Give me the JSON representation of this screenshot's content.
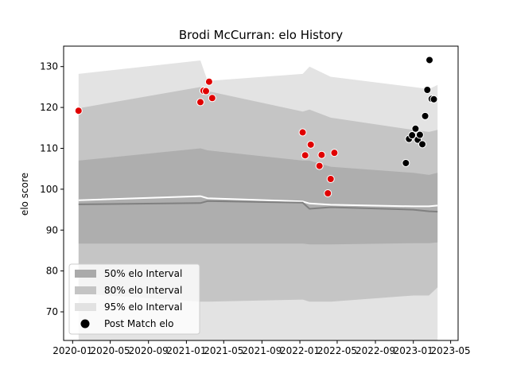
{
  "chart_data": {
    "type": "scatter",
    "title": "Brodi McCurran: elo History",
    "xlabel": "",
    "ylabel": "elo score",
    "xlim": [
      "2019-12-03",
      "2023-05-25"
    ],
    "ylim": [
      63,
      135
    ],
    "x_ticks": [
      "2020-01",
      "2020-05",
      "2020-09",
      "2021-01",
      "2021-05",
      "2021-09",
      "2022-01",
      "2022-05",
      "2022-09",
      "2023-01",
      "2023-05"
    ],
    "y_ticks": [
      70,
      80,
      90,
      100,
      110,
      120,
      130
    ],
    "grid": false,
    "legend_position": "lower-left",
    "legend": [
      {
        "label": "50% elo Interval",
        "swatch": "#aaaaaa"
      },
      {
        "label": "80% elo Interval",
        "swatch": "#c4c4c4"
      },
      {
        "label": "95% elo Interval",
        "swatch": "#e2e2e2"
      },
      {
        "label": "Post Match elo",
        "swatch": "#000000"
      }
    ],
    "bands": {
      "x": [
        "2020-01-20",
        "2021-02-15",
        "2021-03-10",
        "2022-01-10",
        "2022-02-01",
        "2022-04-10",
        "2023-01-01",
        "2023-02-20",
        "2023-03-20"
      ],
      "p95_upper": [
        128.2,
        131.5,
        126.5,
        128.2,
        130.0,
        127.5,
        125.0,
        124.5,
        125.5
      ],
      "p80_upper": [
        119.8,
        125.0,
        124.0,
        119.0,
        119.5,
        117.5,
        114.5,
        114.0,
        114.5
      ],
      "p50_upper": [
        107.0,
        110.0,
        109.5,
        107.0,
        107.0,
        105.5,
        104.0,
        103.5,
        104.0
      ],
      "p50_lower": [
        86.7,
        86.7,
        86.7,
        86.7,
        86.5,
        86.5,
        86.8,
        86.8,
        87.0
      ],
      "p80_lower": [
        74.5,
        72.5,
        72.5,
        73.0,
        72.5,
        72.5,
        74.0,
        74.0,
        76.0
      ],
      "p95_lower": [
        63.0,
        63.0,
        63.0,
        63.0,
        63.0,
        63.0,
        63.0,
        63.0,
        63.0
      ],
      "mean": [
        97.3,
        98.3,
        97.8,
        97.0,
        96.5,
        96.2,
        95.8,
        95.8,
        96.0
      ],
      "median": [
        96.3,
        96.6,
        97.1,
        96.7,
        95.2,
        95.6,
        95.0,
        94.6,
        94.5
      ]
    },
    "series": [
      {
        "name": "",
        "color": "#e00000",
        "x": [
          "2020-01-20",
          "2021-02-15",
          "2021-02-25",
          "2021-03-05",
          "2021-03-15",
          "2021-03-25",
          "2022-01-10",
          "2022-01-18",
          "2022-02-05",
          "2022-03-05",
          "2022-03-12",
          "2022-04-01",
          "2022-04-10",
          "2022-04-22"
        ],
        "y": [
          119.2,
          121.3,
          124.1,
          124.0,
          126.3,
          122.3,
          113.9,
          108.3,
          110.9,
          105.7,
          108.4,
          99.0,
          102.5,
          108.9
        ]
      },
      {
        "name": "Post Match elo",
        "color": "#000000",
        "x": [
          "2022-12-08",
          "2022-12-18",
          "2022-12-28",
          "2023-01-08",
          "2023-01-15",
          "2023-01-22",
          "2023-01-30",
          "2023-02-08",
          "2023-02-15",
          "2023-02-22",
          "2023-03-01",
          "2023-03-08"
        ],
        "y": [
          106.4,
          112.3,
          113.2,
          114.8,
          112.1,
          113.3,
          111.0,
          117.9,
          124.3,
          131.6,
          122.1,
          122.0
        ]
      }
    ]
  }
}
